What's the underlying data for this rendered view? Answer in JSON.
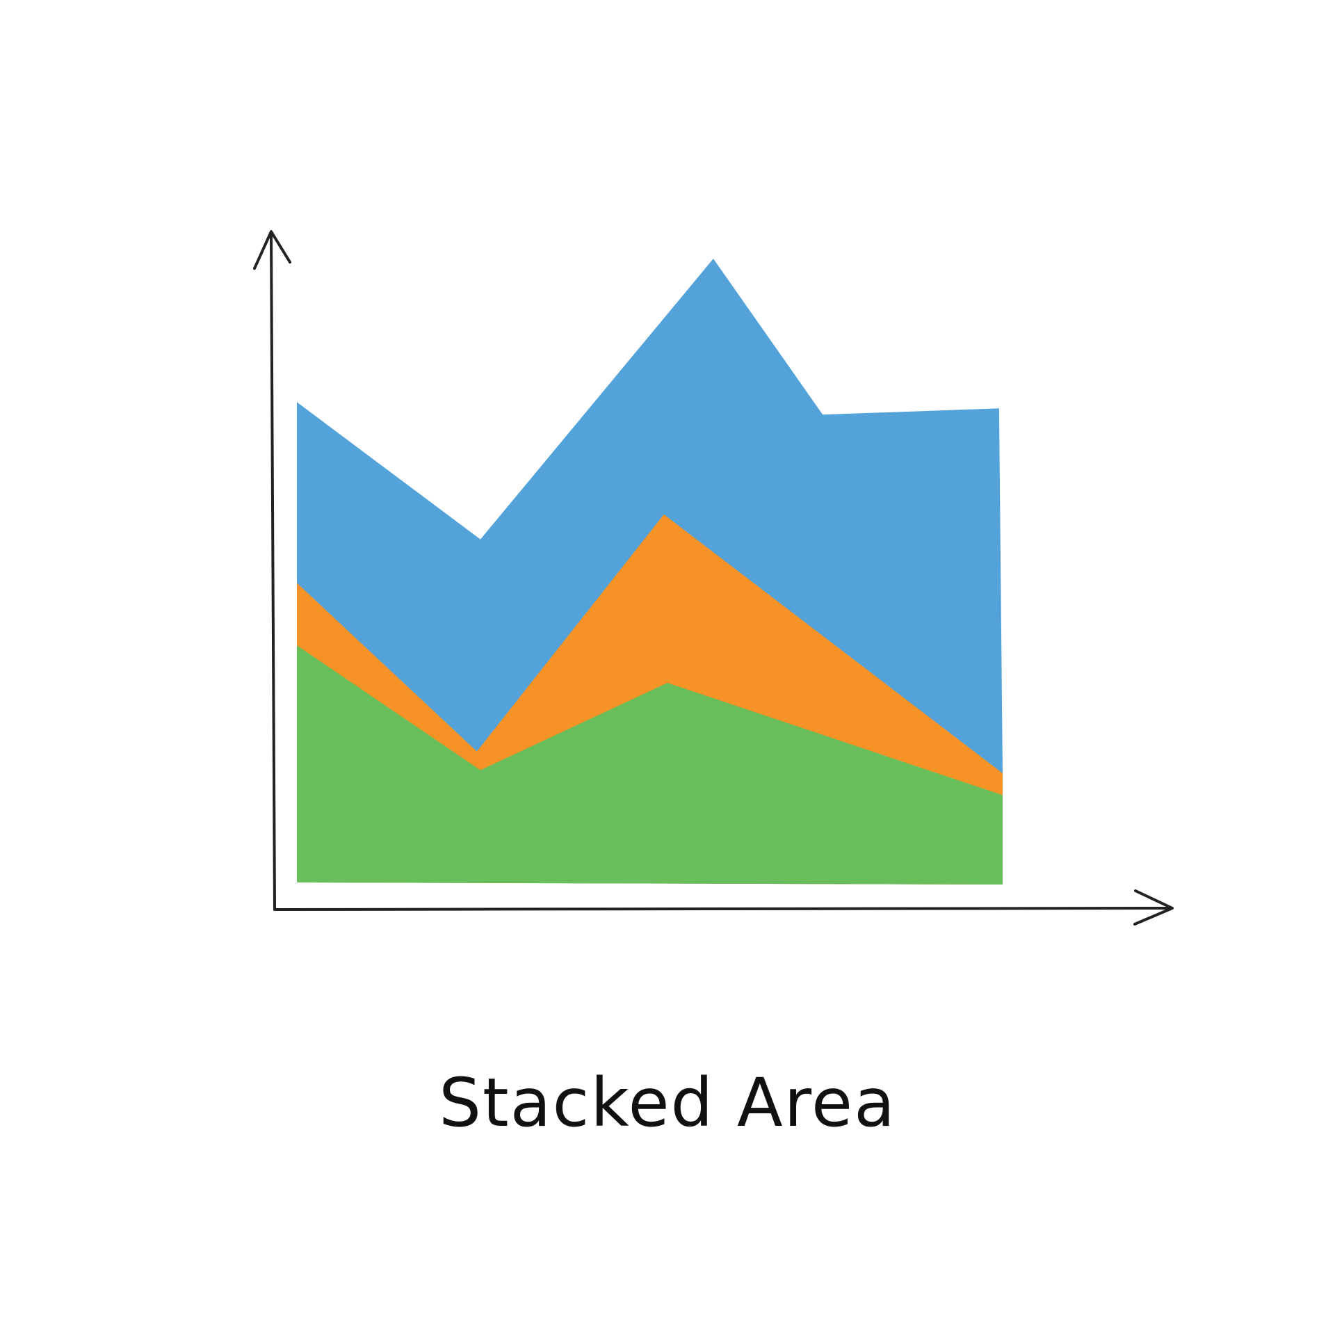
{
  "chart_data": {
    "type": "area",
    "stacked": true,
    "title": "Stacked Area",
    "xlabel": "",
    "ylabel": "",
    "xlim": [
      0,
      10
    ],
    "ylim": [
      0,
      10
    ],
    "grid": false,
    "tick_labels": false,
    "layers": [
      {
        "color": "#68be5a",
        "top": [
          [
            0,
            3.8
          ],
          [
            2.6,
            1.8
          ],
          [
            5.25,
            3.2
          ],
          [
            10,
            1.4
          ]
        ]
      },
      {
        "color": "#f69226",
        "top": [
          [
            0,
            4.8
          ],
          [
            2.55,
            2.1
          ],
          [
            5.2,
            5.9
          ],
          [
            10,
            1.75
          ]
        ]
      },
      {
        "color": "#53a3da",
        "top": [
          [
            0,
            7.7
          ],
          [
            2.6,
            5.5
          ],
          [
            5.9,
            10
          ],
          [
            7.45,
            7.5
          ],
          [
            9.95,
            7.6
          ],
          [
            10,
            1.75
          ]
        ]
      }
    ],
    "axis_color": "#222222"
  }
}
